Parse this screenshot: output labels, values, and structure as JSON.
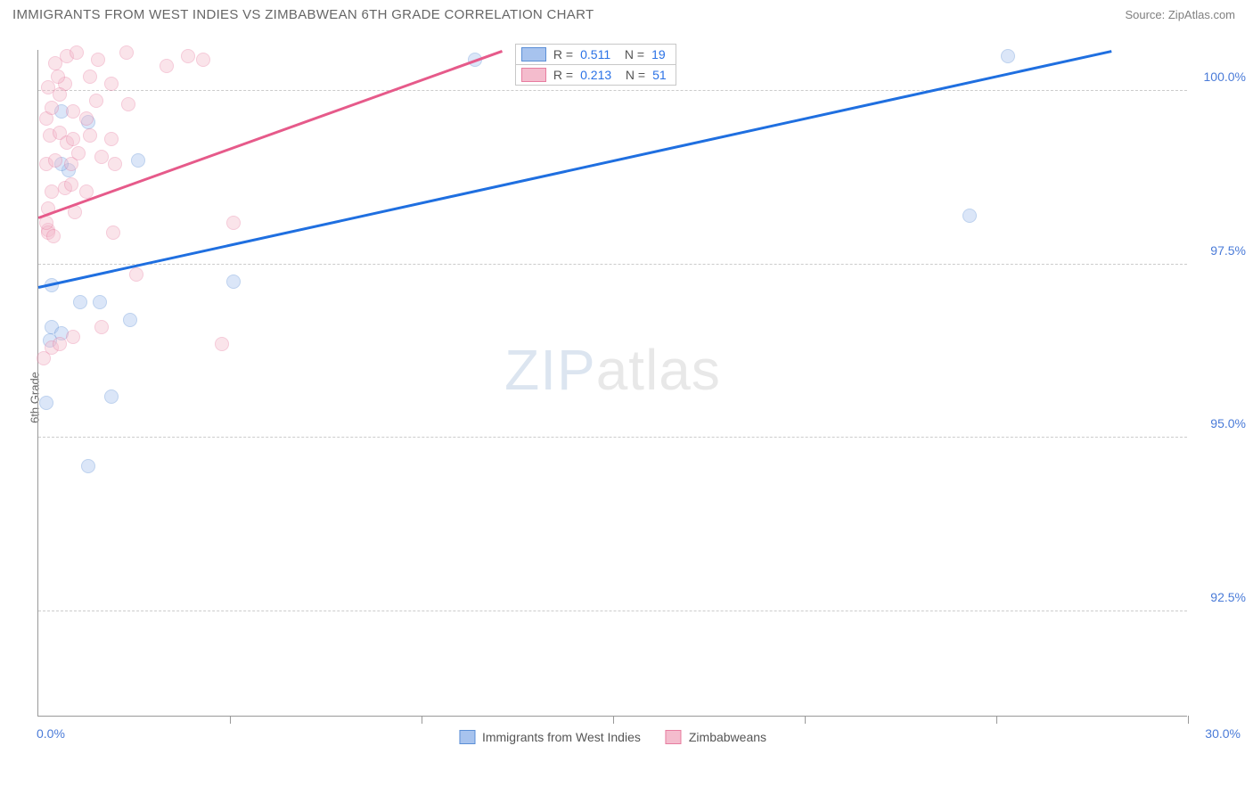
{
  "header": {
    "title": "IMMIGRANTS FROM WEST INDIES VS ZIMBABWEAN 6TH GRADE CORRELATION CHART",
    "source": "Source: ZipAtlas.com"
  },
  "chart": {
    "type": "scatter",
    "ylabel": "6th Grade",
    "background_color": "#ffffff",
    "grid_color": "#cccccc",
    "axis_color": "#999999",
    "tick_label_color": "#4a7bd8",
    "xlim": [
      0.0,
      30.0
    ],
    "ylim": [
      91.0,
      100.6
    ],
    "x_ticks_minor_step": 5.0,
    "x_tick_labels": {
      "min": "0.0%",
      "max": "30.0%"
    },
    "y_ticks": [
      92.5,
      95.0,
      97.5,
      100.0
    ],
    "y_tick_labels": [
      "92.5%",
      "95.0%",
      "97.5%",
      "100.0%"
    ],
    "marker_radius": 8,
    "marker_opacity": 0.4,
    "line_width": 2.5,
    "watermark": {
      "left": "ZIP",
      "right": "atlas"
    },
    "series": [
      {
        "id": "west_indies",
        "label": "Immigrants from West Indies",
        "color_fill": "#a7c3ee",
        "color_stroke": "#5b8fd6",
        "line_color": "#1f6fe0",
        "R": "0.511",
        "N": "19",
        "trend": {
          "x1": 0.0,
          "y1": 97.15,
          "x2": 28.0,
          "y2": 100.55
        },
        "points": [
          {
            "x": 0.2,
            "y": 95.5
          },
          {
            "x": 1.3,
            "y": 94.6
          },
          {
            "x": 1.9,
            "y": 95.6
          },
          {
            "x": 0.3,
            "y": 96.4
          },
          {
            "x": 0.35,
            "y": 96.6
          },
          {
            "x": 0.6,
            "y": 96.5
          },
          {
            "x": 1.1,
            "y": 96.95
          },
          {
            "x": 1.6,
            "y": 96.95
          },
          {
            "x": 2.4,
            "y": 96.7
          },
          {
            "x": 0.35,
            "y": 97.2
          },
          {
            "x": 5.1,
            "y": 97.25
          },
          {
            "x": 0.8,
            "y": 98.85
          },
          {
            "x": 2.6,
            "y": 99.0
          },
          {
            "x": 0.6,
            "y": 98.95
          },
          {
            "x": 0.6,
            "y": 99.7
          },
          {
            "x": 11.4,
            "y": 100.45
          },
          {
            "x": 24.3,
            "y": 98.2
          },
          {
            "x": 25.3,
            "y": 100.5
          },
          {
            "x": 1.3,
            "y": 99.55
          }
        ]
      },
      {
        "id": "zimbabweans",
        "label": "Zimbabweans",
        "color_fill": "#f4bccd",
        "color_stroke": "#e77da0",
        "line_color": "#e65a8a",
        "R": "0.213",
        "N": "51",
        "trend": {
          "x1": 0.0,
          "y1": 98.15,
          "x2": 12.1,
          "y2": 100.55
        },
        "points": [
          {
            "x": 0.15,
            "y": 96.15
          },
          {
            "x": 0.35,
            "y": 96.3
          },
          {
            "x": 0.55,
            "y": 96.35
          },
          {
            "x": 0.9,
            "y": 96.45
          },
          {
            "x": 1.65,
            "y": 96.6
          },
          {
            "x": 4.8,
            "y": 96.35
          },
          {
            "x": 2.55,
            "y": 97.35
          },
          {
            "x": 0.25,
            "y": 98.0
          },
          {
            "x": 0.25,
            "y": 97.95
          },
          {
            "x": 0.4,
            "y": 97.9
          },
          {
            "x": 0.2,
            "y": 98.1
          },
          {
            "x": 1.95,
            "y": 97.95
          },
          {
            "x": 0.25,
            "y": 98.3
          },
          {
            "x": 0.95,
            "y": 98.25
          },
          {
            "x": 5.1,
            "y": 98.1
          },
          {
            "x": 0.35,
            "y": 98.55
          },
          {
            "x": 0.7,
            "y": 98.6
          },
          {
            "x": 0.85,
            "y": 98.65
          },
          {
            "x": 1.25,
            "y": 98.55
          },
          {
            "x": 0.2,
            "y": 98.95
          },
          {
            "x": 0.45,
            "y": 99.0
          },
          {
            "x": 0.85,
            "y": 98.95
          },
          {
            "x": 1.05,
            "y": 99.1
          },
          {
            "x": 1.65,
            "y": 99.05
          },
          {
            "x": 0.3,
            "y": 99.35
          },
          {
            "x": 0.55,
            "y": 99.4
          },
          {
            "x": 0.75,
            "y": 99.25
          },
          {
            "x": 1.35,
            "y": 99.35
          },
          {
            "x": 1.9,
            "y": 99.3
          },
          {
            "x": 0.2,
            "y": 99.6
          },
          {
            "x": 0.35,
            "y": 99.75
          },
          {
            "x": 0.9,
            "y": 99.7
          },
          {
            "x": 1.25,
            "y": 99.6
          },
          {
            "x": 1.5,
            "y": 99.85
          },
          {
            "x": 2.35,
            "y": 99.8
          },
          {
            "x": 0.25,
            "y": 100.05
          },
          {
            "x": 0.7,
            "y": 100.1
          },
          {
            "x": 1.35,
            "y": 100.2
          },
          {
            "x": 0.45,
            "y": 100.4
          },
          {
            "x": 0.75,
            "y": 100.5
          },
          {
            "x": 1.0,
            "y": 100.55
          },
          {
            "x": 1.55,
            "y": 100.45
          },
          {
            "x": 2.3,
            "y": 100.55
          },
          {
            "x": 3.35,
            "y": 100.35
          },
          {
            "x": 3.9,
            "y": 100.5
          },
          {
            "x": 4.3,
            "y": 100.45
          },
          {
            "x": 1.9,
            "y": 100.1
          },
          {
            "x": 0.5,
            "y": 100.2
          },
          {
            "x": 2.0,
            "y": 98.95
          },
          {
            "x": 0.55,
            "y": 99.95
          },
          {
            "x": 0.9,
            "y": 99.3
          }
        ]
      }
    ],
    "legend": {
      "items": [
        {
          "series": "west_indies"
        },
        {
          "series": "zimbabweans"
        }
      ]
    },
    "stats_box": {
      "left_pct": 41.5,
      "top_y_value": 100.35
    }
  }
}
